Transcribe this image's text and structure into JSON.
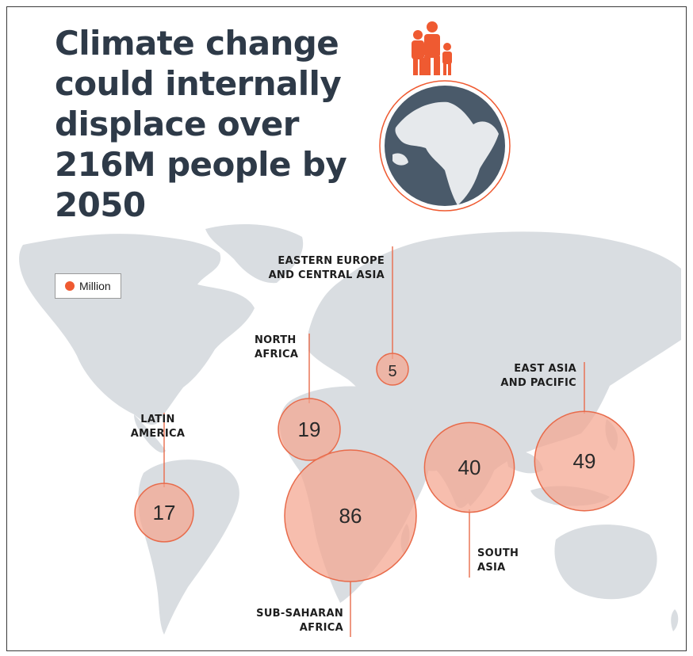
{
  "title_lines": [
    "Climate change",
    "could internally",
    "displace over",
    "216M people by",
    "2050"
  ],
  "legend": {
    "label": "Million",
    "color": "#ef5a31"
  },
  "colors": {
    "title": "#2e3a48",
    "land": "#d9dde1",
    "bubble_fill": "#f4a58f",
    "bubble_stroke": "#e86b4b",
    "leader": "#e86b4b",
    "globe": "#4a5a6a",
    "family_icon": "#ef5a31"
  },
  "icons": [
    "family-icon",
    "globe-icon",
    "world-map"
  ],
  "chart_data": {
    "type": "bubble",
    "unit": "Million",
    "regions": [
      {
        "name_lines": [
          "LATIN",
          "AMERICA"
        ],
        "value": 17
      },
      {
        "name_lines": [
          "NORTH",
          "AFRICA"
        ],
        "value": 19
      },
      {
        "name_lines": [
          "EASTERN EUROPE",
          "AND CENTRAL ASIA"
        ],
        "value": 5
      },
      {
        "name_lines": [
          "SUB-SAHARAN",
          "AFRICA"
        ],
        "value": 86
      },
      {
        "name_lines": [
          "SOUTH",
          "ASIA"
        ],
        "value": 40
      },
      {
        "name_lines": [
          "EAST ASIA",
          "AND PACIFIC"
        ],
        "value": 49
      }
    ]
  }
}
